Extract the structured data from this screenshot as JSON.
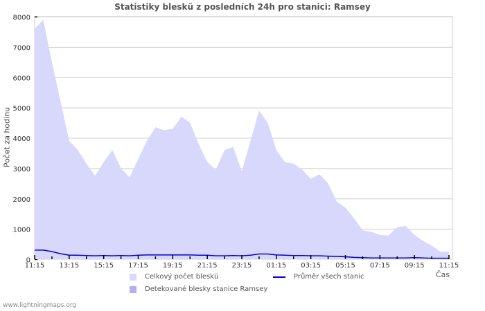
{
  "title": "Statistiky bleskŭ z posledních 24h pro stanici: Ramsey",
  "footer": "www.lightningmaps.org",
  "colors": {
    "total_fill": "#d8d8fc",
    "detected_fill": "#b0b0f0",
    "average_line": "#0000cc",
    "grid": "#cccccc"
  },
  "legend": {
    "total": "Celkový počet bleskŭ",
    "detected": "Detekované blesky stanice Ramsey",
    "average": "Průměr všech stanic"
  },
  "chart_data": {
    "type": "area",
    "title": "Statistiky bleskŭ z posledních 24h pro stanici: Ramsey",
    "xlabel": "Čas",
    "ylabel": "Počet za hodinu",
    "ylim": [
      0,
      8000
    ],
    "yticks": [
      0,
      1000,
      2000,
      3000,
      4000,
      5000,
      6000,
      7000,
      8000
    ],
    "xticks": [
      "11:15",
      "13:15",
      "15:15",
      "17:15",
      "19:15",
      "21:15",
      "23:15",
      "01:15",
      "03:15",
      "05:15",
      "07:15",
      "09:15",
      "11:15"
    ],
    "grid": true,
    "legend_position": "bottom",
    "x": [
      "11:15",
      "11:45",
      "12:15",
      "12:45",
      "13:15",
      "13:45",
      "14:15",
      "14:45",
      "15:15",
      "15:45",
      "16:15",
      "16:45",
      "17:15",
      "17:45",
      "18:15",
      "18:45",
      "19:15",
      "19:45",
      "20:15",
      "20:45",
      "21:15",
      "21:45",
      "22:15",
      "22:45",
      "23:15",
      "23:45",
      "00:15",
      "00:45",
      "01:15",
      "01:45",
      "02:15",
      "02:45",
      "03:15",
      "03:45",
      "04:15",
      "04:45",
      "05:15",
      "05:45",
      "06:15",
      "06:45",
      "07:15",
      "07:45",
      "08:15",
      "08:45",
      "09:15",
      "09:45",
      "10:15",
      "10:45",
      "11:15"
    ],
    "series": [
      {
        "name": "Celkový počet bleskŭ",
        "values": [
          7600,
          7900,
          6500,
          5200,
          3900,
          3600,
          3150,
          2750,
          3200,
          3600,
          3000,
          2700,
          3300,
          3900,
          4350,
          4250,
          4300,
          4700,
          4500,
          3800,
          3200,
          2950,
          3600,
          3700,
          2900,
          3900,
          4900,
          4500,
          3600,
          3200,
          3150,
          2950,
          2650,
          2800,
          2500,
          1900,
          1700,
          1350,
          950,
          900,
          800,
          780,
          1050,
          1100,
          800,
          600,
          450,
          250,
          250
        ]
      },
      {
        "name": "Detekované blesky stanice Ramsey",
        "values": [
          0,
          0,
          0,
          0,
          0,
          0,
          0,
          0,
          0,
          0,
          0,
          0,
          0,
          0,
          0,
          0,
          0,
          0,
          0,
          0,
          0,
          0,
          0,
          0,
          0,
          0,
          0,
          0,
          0,
          0,
          0,
          0,
          0,
          0,
          0,
          0,
          0,
          0,
          0,
          0,
          0,
          0,
          0,
          0,
          0,
          0,
          0,
          0,
          0
        ]
      },
      {
        "name": "Průměr všech stanic",
        "values": [
          300,
          300,
          250,
          180,
          130,
          130,
          120,
          110,
          120,
          110,
          120,
          110,
          130,
          140,
          140,
          140,
          140,
          140,
          140,
          130,
          130,
          110,
          110,
          120,
          110,
          130,
          170,
          170,
          140,
          130,
          120,
          120,
          110,
          110,
          100,
          90,
          80,
          60,
          50,
          40,
          40,
          40,
          40,
          40,
          50,
          40,
          30,
          30,
          30
        ]
      }
    ]
  }
}
